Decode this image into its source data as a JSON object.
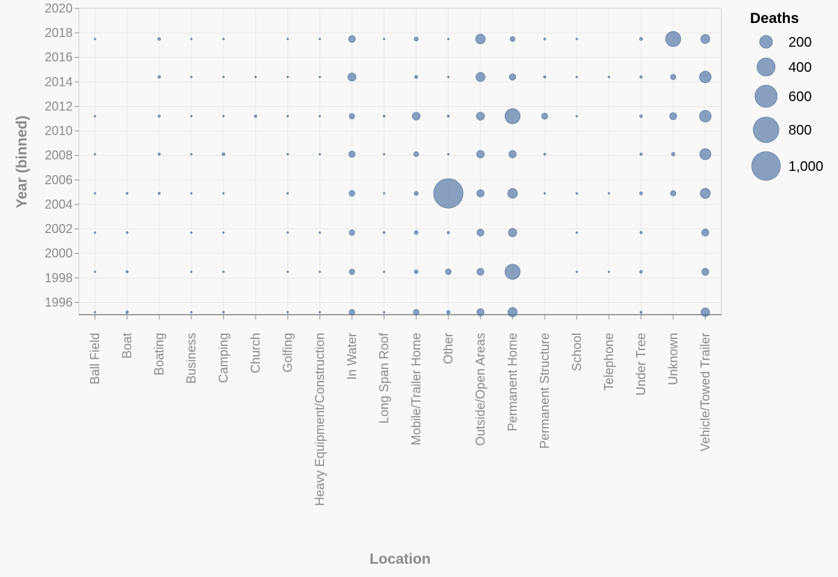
{
  "chart_data": {
    "type": "scatter",
    "xlabel": "Location",
    "ylabel": "Year (binned)",
    "categories": [
      "Ball Field",
      "Boat",
      "Boating",
      "Business",
      "Camping",
      "Church",
      "Golfing",
      "Heavy Equipment/Construction",
      "In Water",
      "Long Span Roof",
      "Mobile/Trailer Home",
      "Other",
      "Outside/Open Areas",
      "Permanent Home",
      "Permanent Structure",
      "School",
      "Telephone",
      "Under Tree",
      "Unknown",
      "Vehicle/Towed Trailer"
    ],
    "ylim": [
      1995,
      2020
    ],
    "y_ticks": [
      1996,
      1998,
      2000,
      2002,
      2004,
      2006,
      2008,
      2010,
      2012,
      2014,
      2016,
      2018,
      2020
    ],
    "y_tick_labels": [
      "1996",
      "1998",
      "2000",
      "2002",
      "2004",
      "2006",
      "2008",
      "2010",
      "2012",
      "2014",
      "2016",
      "2018",
      "2020"
    ],
    "grid": true,
    "legend": {
      "title": "Deaths",
      "placement": "top-right",
      "values": [
        200,
        400,
        600,
        800,
        1000
      ],
      "labels": [
        "200",
        "400",
        "600",
        "800",
        "1,000"
      ]
    },
    "color": "#4c6fa0",
    "size_field": "Deaths",
    "points": [
      {
        "x": "Ball Field",
        "y": 1995.2,
        "deaths": 2
      },
      {
        "x": "Ball Field",
        "y": 1998.5,
        "deaths": 1
      },
      {
        "x": "Ball Field",
        "y": 2001.7,
        "deaths": 1
      },
      {
        "x": "Ball Field",
        "y": 2004.9,
        "deaths": 2
      },
      {
        "x": "Ball Field",
        "y": 2008.1,
        "deaths": 1
      },
      {
        "x": "Ball Field",
        "y": 2011.2,
        "deaths": 1
      },
      {
        "x": "Ball Field",
        "y": 2017.5,
        "deaths": 1
      },
      {
        "x": "Boat",
        "y": 1995.2,
        "deaths": 8
      },
      {
        "x": "Boat",
        "y": 1998.5,
        "deaths": 6
      },
      {
        "x": "Boat",
        "y": 2001.7,
        "deaths": 5
      },
      {
        "x": "Boat",
        "y": 2004.9,
        "deaths": 5
      },
      {
        "x": "Boating",
        "y": 2004.9,
        "deaths": 6
      },
      {
        "x": "Boating",
        "y": 2008.1,
        "deaths": 7
      },
      {
        "x": "Boating",
        "y": 2011.2,
        "deaths": 7
      },
      {
        "x": "Boating",
        "y": 2014.4,
        "deaths": 9
      },
      {
        "x": "Boating",
        "y": 2017.5,
        "deaths": 10
      },
      {
        "x": "Business",
        "y": 1995.2,
        "deaths": 2
      },
      {
        "x": "Business",
        "y": 1998.5,
        "deaths": 2
      },
      {
        "x": "Business",
        "y": 2001.7,
        "deaths": 3
      },
      {
        "x": "Business",
        "y": 2004.9,
        "deaths": 2
      },
      {
        "x": "Business",
        "y": 2008.1,
        "deaths": 1
      },
      {
        "x": "Business",
        "y": 2011.2,
        "deaths": 2
      },
      {
        "x": "Business",
        "y": 2014.4,
        "deaths": 1
      },
      {
        "x": "Business",
        "y": 2017.5,
        "deaths": 1
      },
      {
        "x": "Camping",
        "y": 1995.2,
        "deaths": 4
      },
      {
        "x": "Camping",
        "y": 1998.5,
        "deaths": 2
      },
      {
        "x": "Camping",
        "y": 2001.7,
        "deaths": 2
      },
      {
        "x": "Camping",
        "y": 2004.9,
        "deaths": 2
      },
      {
        "x": "Camping",
        "y": 2008.1,
        "deaths": 10
      },
      {
        "x": "Camping",
        "y": 2011.2,
        "deaths": 3
      },
      {
        "x": "Camping",
        "y": 2014.4,
        "deaths": 3
      },
      {
        "x": "Camping",
        "y": 2017.5,
        "deaths": 3
      },
      {
        "x": "Church",
        "y": 2011.2,
        "deaths": 8
      },
      {
        "x": "Church",
        "y": 2014.4,
        "deaths": 1
      },
      {
        "x": "Golfing",
        "y": 1995.2,
        "deaths": 2
      },
      {
        "x": "Golfing",
        "y": 1998.5,
        "deaths": 2
      },
      {
        "x": "Golfing",
        "y": 2001.7,
        "deaths": 1
      },
      {
        "x": "Golfing",
        "y": 2004.9,
        "deaths": 1
      },
      {
        "x": "Golfing",
        "y": 2008.1,
        "deaths": 1
      },
      {
        "x": "Golfing",
        "y": 2011.2,
        "deaths": 1
      },
      {
        "x": "Golfing",
        "y": 2014.4,
        "deaths": 1
      },
      {
        "x": "Golfing",
        "y": 2017.5,
        "deaths": 1
      },
      {
        "x": "Heavy Equipment/Construction",
        "y": 1995.2,
        "deaths": 2
      },
      {
        "x": "Heavy Equipment/Construction",
        "y": 1998.5,
        "deaths": 2
      },
      {
        "x": "Heavy Equipment/Construction",
        "y": 2001.7,
        "deaths": 1
      },
      {
        "x": "Heavy Equipment/Construction",
        "y": 2008.1,
        "deaths": 2
      },
      {
        "x": "Heavy Equipment/Construction",
        "y": 2011.2,
        "deaths": 3
      },
      {
        "x": "Heavy Equipment/Construction",
        "y": 2014.4,
        "deaths": 2
      },
      {
        "x": "Heavy Equipment/Construction",
        "y": 2017.5,
        "deaths": 2
      },
      {
        "x": "In Water",
        "y": 1995.2,
        "deaths": 40
      },
      {
        "x": "In Water",
        "y": 1998.5,
        "deaths": 36
      },
      {
        "x": "In Water",
        "y": 2001.7,
        "deaths": 38
      },
      {
        "x": "In Water",
        "y": 2004.9,
        "deaths": 40
      },
      {
        "x": "In Water",
        "y": 2008.1,
        "deaths": 50
      },
      {
        "x": "In Water",
        "y": 2011.2,
        "deaths": 36
      },
      {
        "x": "In Water",
        "y": 2014.4,
        "deaths": 80
      },
      {
        "x": "In Water",
        "y": 2017.5,
        "deaths": 55
      },
      {
        "x": "Long Span Roof",
        "y": 1995.2,
        "deaths": 1
      },
      {
        "x": "Long Span Roof",
        "y": 1998.5,
        "deaths": 1
      },
      {
        "x": "Long Span Roof",
        "y": 2001.7,
        "deaths": 5
      },
      {
        "x": "Long Span Roof",
        "y": 2004.9,
        "deaths": 1
      },
      {
        "x": "Long Span Roof",
        "y": 2008.1,
        "deaths": 1
      },
      {
        "x": "Long Span Roof",
        "y": 2011.2,
        "deaths": 5
      },
      {
        "x": "Long Span Roof",
        "y": 2017.5,
        "deaths": 1
      },
      {
        "x": "Mobile/Trailer Home",
        "y": 1995.2,
        "deaths": 40
      },
      {
        "x": "Mobile/Trailer Home",
        "y": 1998.5,
        "deaths": 17
      },
      {
        "x": "Mobile/Trailer Home",
        "y": 2001.7,
        "deaths": 17
      },
      {
        "x": "Mobile/Trailer Home",
        "y": 2004.9,
        "deaths": 20
      },
      {
        "x": "Mobile/Trailer Home",
        "y": 2008.1,
        "deaths": 30
      },
      {
        "x": "Mobile/Trailer Home",
        "y": 2011.2,
        "deaths": 75
      },
      {
        "x": "Mobile/Trailer Home",
        "y": 2014.4,
        "deaths": 12
      },
      {
        "x": "Mobile/Trailer Home",
        "y": 2017.5,
        "deaths": 20
      },
      {
        "x": "Other",
        "y": 1995.2,
        "deaths": 15
      },
      {
        "x": "Other",
        "y": 1998.5,
        "deaths": 40
      },
      {
        "x": "Other",
        "y": 2001.7,
        "deaths": 6
      },
      {
        "x": "Other",
        "y": 2004.9,
        "deaths": 1050
      },
      {
        "x": "Other",
        "y": 2008.1,
        "deaths": 2
      },
      {
        "x": "Other",
        "y": 2011.2,
        "deaths": 6
      },
      {
        "x": "Other",
        "y": 2014.4,
        "deaths": 3
      },
      {
        "x": "Other",
        "y": 2017.5,
        "deaths": 3
      },
      {
        "x": "Outside/Open Areas",
        "y": 1995.2,
        "deaths": 60
      },
      {
        "x": "Outside/Open Areas",
        "y": 1998.5,
        "deaths": 58
      },
      {
        "x": "Outside/Open Areas",
        "y": 2001.7,
        "deaths": 58
      },
      {
        "x": "Outside/Open Areas",
        "y": 2004.9,
        "deaths": 65
      },
      {
        "x": "Outside/Open Areas",
        "y": 2008.1,
        "deaths": 70
      },
      {
        "x": "Outside/Open Areas",
        "y": 2011.2,
        "deaths": 80
      },
      {
        "x": "Outside/Open Areas",
        "y": 2014.4,
        "deaths": 100
      },
      {
        "x": "Outside/Open Areas",
        "y": 2017.5,
        "deaths": 115
      },
      {
        "x": "Permanent Home",
        "y": 1995.2,
        "deaths": 105
      },
      {
        "x": "Permanent Home",
        "y": 1998.5,
        "deaths": 280
      },
      {
        "x": "Permanent Home",
        "y": 2001.7,
        "deaths": 85
      },
      {
        "x": "Permanent Home",
        "y": 2004.9,
        "deaths": 115
      },
      {
        "x": "Permanent Home",
        "y": 2008.1,
        "deaths": 65
      },
      {
        "x": "Permanent Home",
        "y": 2011.2,
        "deaths": 280
      },
      {
        "x": "Permanent Home",
        "y": 2014.4,
        "deaths": 50
      },
      {
        "x": "Permanent Home",
        "y": 2017.5,
        "deaths": 30
      },
      {
        "x": "Permanent Structure",
        "y": 2004.9,
        "deaths": 4
      },
      {
        "x": "Permanent Structure",
        "y": 2008.1,
        "deaths": 5
      },
      {
        "x": "Permanent Structure",
        "y": 2011.2,
        "deaths": 45
      },
      {
        "x": "Permanent Structure",
        "y": 2014.4,
        "deaths": 7
      },
      {
        "x": "Permanent Structure",
        "y": 2017.5,
        "deaths": 5
      },
      {
        "x": "School",
        "y": 1998.5,
        "deaths": 1
      },
      {
        "x": "School",
        "y": 2001.7,
        "deaths": 1
      },
      {
        "x": "School",
        "y": 2004.9,
        "deaths": 4
      },
      {
        "x": "School",
        "y": 2011.2,
        "deaths": 2
      },
      {
        "x": "School",
        "y": 2014.4,
        "deaths": 1
      },
      {
        "x": "School",
        "y": 2017.5,
        "deaths": 1
      },
      {
        "x": "Telephone",
        "y": 1998.5,
        "deaths": 1
      },
      {
        "x": "Telephone",
        "y": 2004.9,
        "deaths": 1
      },
      {
        "x": "Telephone",
        "y": 2014.4,
        "deaths": 1
      },
      {
        "x": "Under Tree",
        "y": 1995.2,
        "deaths": 6
      },
      {
        "x": "Under Tree",
        "y": 1998.5,
        "deaths": 10
      },
      {
        "x": "Under Tree",
        "y": 2001.7,
        "deaths": 8
      },
      {
        "x": "Under Tree",
        "y": 2004.9,
        "deaths": 12
      },
      {
        "x": "Under Tree",
        "y": 2008.1,
        "deaths": 8
      },
      {
        "x": "Under Tree",
        "y": 2011.2,
        "deaths": 10
      },
      {
        "x": "Under Tree",
        "y": 2014.4,
        "deaths": 8
      },
      {
        "x": "Under Tree",
        "y": 2017.5,
        "deaths": 12
      },
      {
        "x": "Unknown",
        "y": 2004.9,
        "deaths": 35
      },
      {
        "x": "Unknown",
        "y": 2008.1,
        "deaths": 15
      },
      {
        "x": "Unknown",
        "y": 2011.2,
        "deaths": 60
      },
      {
        "x": "Unknown",
        "y": 2014.4,
        "deaths": 35
      },
      {
        "x": "Unknown",
        "y": 2017.5,
        "deaths": 280
      },
      {
        "x": "Vehicle/Towed Trailer",
        "y": 1995.2,
        "deaths": 90
      },
      {
        "x": "Vehicle/Towed Trailer",
        "y": 1998.5,
        "deaths": 60
      },
      {
        "x": "Vehicle/Towed Trailer",
        "y": 2001.7,
        "deaths": 60
      },
      {
        "x": "Vehicle/Towed Trailer",
        "y": 2004.9,
        "deaths": 125
      },
      {
        "x": "Vehicle/Towed Trailer",
        "y": 2008.1,
        "deaths": 150
      },
      {
        "x": "Vehicle/Towed Trailer",
        "y": 2011.2,
        "deaths": 165
      },
      {
        "x": "Vehicle/Towed Trailer",
        "y": 2014.4,
        "deaths": 165
      },
      {
        "x": "Vehicle/Towed Trailer",
        "y": 2017.5,
        "deaths": 100
      }
    ]
  }
}
